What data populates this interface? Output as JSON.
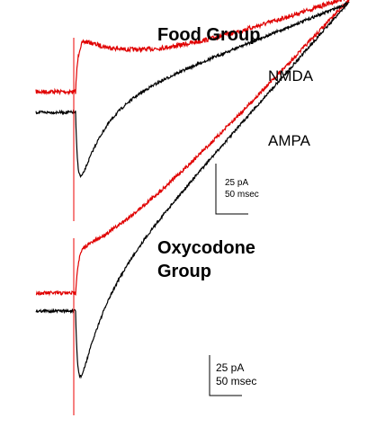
{
  "panels": [
    {
      "title_lines": [
        "Food Group"
      ],
      "trace_labels": [
        "NMDA",
        "AMPA"
      ],
      "scale_bar": {
        "amplitude": "25 pA",
        "time": "50 msec"
      }
    },
    {
      "title_lines": [
        "Oxycodone",
        "Group"
      ],
      "scale_bar": {
        "amplitude": "25 pA",
        "time": "50 msec"
      }
    }
  ]
}
